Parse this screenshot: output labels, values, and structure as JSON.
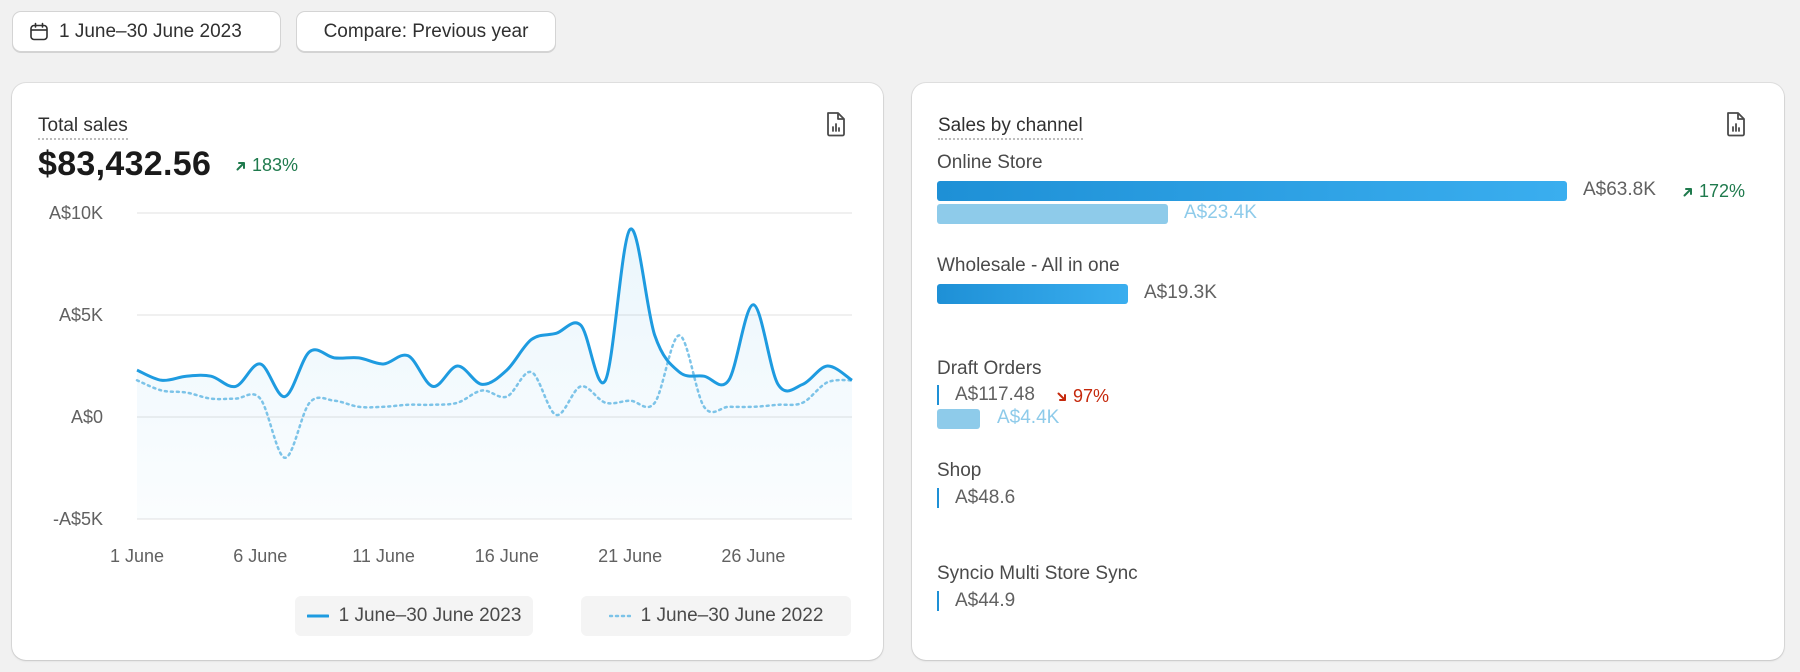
{
  "filters": {
    "date_range": "1 June–30 June 2023",
    "compare": "Compare: Previous year"
  },
  "total_sales": {
    "title": "Total sales",
    "value": "$83,432.56",
    "change": "183%",
    "change_direction": "up"
  },
  "chart_data": {
    "type": "line",
    "y_ticks": [
      "A$10K",
      "A$5K",
      "A$0",
      "-A$5K"
    ],
    "x_ticks": [
      "1 June",
      "6 June",
      "11 June",
      "16 June",
      "21 June",
      "26 June"
    ],
    "ylim": [
      -5000,
      10000
    ],
    "x": [
      1,
      2,
      3,
      4,
      5,
      6,
      7,
      8,
      9,
      10,
      11,
      12,
      13,
      14,
      15,
      16,
      17,
      18,
      19,
      20,
      21,
      22,
      23,
      24,
      25,
      26,
      27,
      28,
      29,
      30
    ],
    "series": [
      {
        "name": "1 June–30 June 2023",
        "style": "solid",
        "color": "#1e9be0",
        "values": [
          2300,
          1800,
          2000,
          2000,
          1500,
          2600,
          1000,
          3200,
          2900,
          2900,
          2600,
          3000,
          1500,
          2500,
          1600,
          2300,
          3800,
          4100,
          4500,
          1800,
          9200,
          4000,
          2200,
          2000,
          1800,
          5500,
          1600,
          1600,
          2500,
          1800
        ]
      },
      {
        "name": "1 June–30 June 2022",
        "style": "dotted",
        "color": "#7cc3e8",
        "values": [
          1800,
          1300,
          1200,
          900,
          900,
          900,
          -2000,
          700,
          800,
          500,
          500,
          600,
          600,
          700,
          1300,
          1000,
          2200,
          100,
          1500,
          700,
          800,
          700,
          4000,
          500,
          500,
          500,
          600,
          700,
          1700,
          1800
        ]
      }
    ]
  },
  "legend": {
    "current": "1 June–30 June 2023",
    "previous": "1 June–30 June 2022"
  },
  "sales_by_channel": {
    "title": "Sales by channel",
    "axis_max": 63800,
    "channels": [
      {
        "name": "Online Store",
        "current_label": "A$63.8K",
        "current_value": 63800,
        "previous_label": "A$23.4K",
        "previous_value": 23400,
        "change": "172%",
        "change_direction": "up"
      },
      {
        "name": "Wholesale - All in one",
        "current_label": "A$19.3K",
        "current_value": 19300
      },
      {
        "name": "Draft Orders",
        "current_label": "A$117.48",
        "current_value": 117.48,
        "previous_label": "A$4.4K",
        "previous_value": 4400,
        "change": "97%",
        "change_direction": "down"
      },
      {
        "name": "Shop",
        "current_label": "A$48.6",
        "current_value": 48.6
      },
      {
        "name": "Syncio Multi Store Sync",
        "current_label": "A$44.9",
        "current_value": 44.9
      }
    ]
  },
  "colors": {
    "accent": "#1e9be0",
    "previous": "#8ecbea",
    "positive": "#1f7a4d",
    "negative": "#c5280c"
  }
}
